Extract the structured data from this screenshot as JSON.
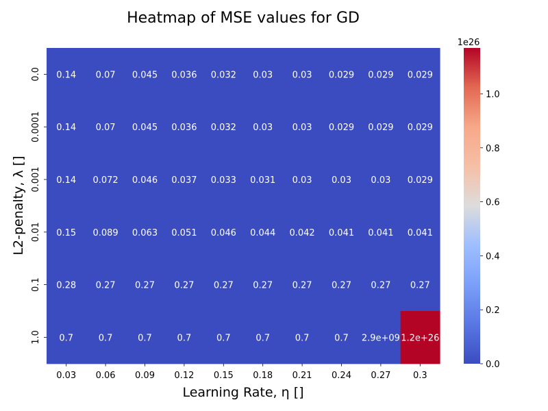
{
  "chart_data": {
    "type": "heatmap",
    "title": "Heatmap of MSE values for GD",
    "xlabel": "Learning Rate, η []",
    "ylabel": "L2-penalty, λ []",
    "x_categories": [
      "0.03",
      "0.06",
      "0.09",
      "0.12",
      "0.15",
      "0.18",
      "0.21",
      "0.24",
      "0.27",
      "0.3"
    ],
    "y_categories": [
      "0.0",
      "0.0001",
      "0.001",
      "0.01",
      "0.1",
      "1.0"
    ],
    "values": [
      [
        0.14,
        0.07,
        0.045,
        0.036,
        0.032,
        0.03,
        0.03,
        0.029,
        0.029,
        0.029
      ],
      [
        0.14,
        0.07,
        0.045,
        0.036,
        0.032,
        0.03,
        0.03,
        0.029,
        0.029,
        0.029
      ],
      [
        0.14,
        0.072,
        0.046,
        0.037,
        0.033,
        0.031,
        0.03,
        0.03,
        0.03,
        0.029
      ],
      [
        0.15,
        0.089,
        0.063,
        0.051,
        0.046,
        0.044,
        0.042,
        0.041,
        0.041,
        0.041
      ],
      [
        0.28,
        0.27,
        0.27,
        0.27,
        0.27,
        0.27,
        0.27,
        0.27,
        0.27,
        0.27
      ],
      [
        0.7,
        0.7,
        0.7,
        0.7,
        0.7,
        0.7,
        0.7,
        0.7,
        2900000000.0,
        1.2e+26
      ]
    ],
    "annotations": [
      [
        "0.14",
        "0.07",
        "0.045",
        "0.036",
        "0.032",
        "0.03",
        "0.03",
        "0.029",
        "0.029",
        "0.029"
      ],
      [
        "0.14",
        "0.07",
        "0.045",
        "0.036",
        "0.032",
        "0.03",
        "0.03",
        "0.029",
        "0.029",
        "0.029"
      ],
      [
        "0.14",
        "0.072",
        "0.046",
        "0.037",
        "0.033",
        "0.031",
        "0.03",
        "0.03",
        "0.03",
        "0.029"
      ],
      [
        "0.15",
        "0.089",
        "0.063",
        "0.051",
        "0.046",
        "0.044",
        "0.042",
        "0.041",
        "0.041",
        "0.041"
      ],
      [
        "0.28",
        "0.27",
        "0.27",
        "0.27",
        "0.27",
        "0.27",
        "0.27",
        "0.27",
        "0.27",
        "0.27"
      ],
      [
        "0.7",
        "0.7",
        "0.7",
        "0.7",
        "0.7",
        "0.7",
        "0.7",
        "0.7",
        "2.9e+09",
        "1.2e+26"
      ]
    ],
    "colormap": "coolwarm",
    "colorbar": {
      "vmin": 0,
      "vmax": 1.17e+26,
      "ticks": [
        0.0,
        0.2,
        0.4,
        0.6,
        0.8,
        1.0
      ],
      "tick_labels": [
        "0.0",
        "0.2",
        "0.4",
        "0.6",
        "0.8",
        "1.0"
      ],
      "exponent_label": "1e26"
    },
    "colors": {
      "low": "#3b4cc0",
      "high": "#b40426",
      "annotation_text": "#ffffff"
    }
  }
}
